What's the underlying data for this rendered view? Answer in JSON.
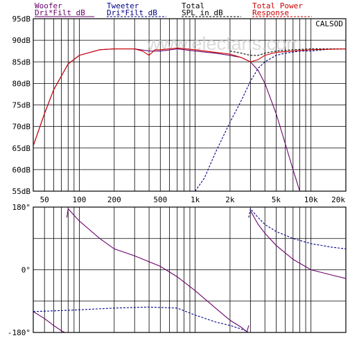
{
  "legend": [
    {
      "line1": "Woofer",
      "line2": "Dri*Filt dB",
      "color": "#6a006a"
    },
    {
      "line1": "Tweeter",
      "line2": "Dri*Filt dB",
      "color": "#000088"
    },
    {
      "line1": "Total",
      "line2": "SPL in dB",
      "color": "#000000"
    },
    {
      "line1": "Total Power",
      "line2": "Response",
      "color": "#cc0000"
    }
  ],
  "brand_label": "CALSOD",
  "watermark": "www.elecfans.com",
  "chart_data": [
    {
      "type": "line",
      "x_scale": "log",
      "xlim": [
        40,
        20000
      ],
      "ylim": [
        55,
        95
      ],
      "y_ticks": [
        "95dB",
        "90dB",
        "85dB",
        "80dB",
        "75dB",
        "70dB",
        "65dB",
        "60dB",
        "55dB"
      ],
      "x_ticks": [
        "50",
        "100",
        "200",
        "500",
        "1k",
        "2k",
        "5k",
        "10k",
        "20k"
      ],
      "series": [
        {
          "name": "Woofer Dri*Filt dB",
          "color": "#6a006a",
          "x": [
            40,
            50,
            60,
            80,
            100,
            150,
            200,
            250,
            300,
            400,
            500,
            700,
            1000,
            1500,
            2000,
            2500,
            3000,
            3500,
            4000,
            5000,
            6000,
            7000,
            8000
          ],
          "y": [
            65.5,
            73,
            78.5,
            84.5,
            86.5,
            87.8,
            88,
            88,
            88,
            87.5,
            87.5,
            88,
            87.5,
            87,
            86.5,
            86,
            85,
            83,
            80,
            73,
            66,
            60,
            55
          ]
        },
        {
          "name": "Tweeter Dri*Filt dB",
          "color": "#000088",
          "x": [
            1000,
            1200,
            1500,
            2000,
            2500,
            3000,
            3500,
            4000,
            5000,
            6000,
            8000,
            10000,
            15000,
            20000
          ],
          "y": [
            55,
            58,
            64,
            71,
            76,
            80.5,
            83.5,
            85,
            86.5,
            87,
            87.5,
            87.5,
            88,
            88
          ]
        },
        {
          "name": "Total SPL in dB",
          "color": "#000000",
          "x": [
            2000,
            2500,
            3000,
            3500,
            4000,
            5000,
            7000,
            10000,
            20000
          ],
          "y": [
            87.5,
            87,
            86.5,
            86.5,
            87,
            87.5,
            87.8,
            88,
            88
          ]
        },
        {
          "name": "Total Power Response",
          "color": "#cc0000",
          "x": [
            40,
            50,
            60,
            80,
            100,
            150,
            200,
            250,
            300,
            350,
            400,
            450,
            500,
            700,
            1000,
            1500,
            2000,
            2500,
            3000,
            3500,
            4000,
            5000,
            7000,
            10000,
            20000
          ],
          "y": [
            65.5,
            73,
            78.5,
            84.5,
            86.5,
            87.8,
            88,
            88,
            88,
            87.5,
            86.5,
            87.8,
            87.8,
            88.2,
            87.8,
            87.2,
            86.8,
            86,
            85,
            85.5,
            86.5,
            87.2,
            87.5,
            87.8,
            88
          ]
        }
      ]
    },
    {
      "type": "line",
      "x_scale": "log",
      "xlim": [
        40,
        20000
      ],
      "ylim": [
        -180,
        180
      ],
      "y_ticks": [
        "180°",
        "0°",
        "-180°"
      ],
      "series": [
        {
          "name": "Woofer phase",
          "color": "#6a006a",
          "x": [
            40,
            50,
            60,
            70,
            75,
            78,
            80,
            100,
            150,
            200,
            300,
            500,
            700,
            1000,
            1500,
            2000,
            2500,
            2800,
            2900,
            3000,
            3500,
            4000,
            5000,
            7000,
            10000,
            15000,
            20000
          ],
          "y": [
            -120,
            -140,
            -160,
            -175,
            -180,
            150,
            175,
            140,
            90,
            60,
            40,
            10,
            -20,
            -60,
            -110,
            -145,
            -165,
            -178,
            -160,
            170,
            130,
            105,
            70,
            30,
            0,
            -15,
            -25
          ]
        },
        {
          "name": "Tweeter phase",
          "color": "#000088",
          "x": [
            40,
            60,
            100,
            200,
            400,
            700,
            1000,
            1500,
            2000,
            2500,
            2850,
            2900,
            3000,
            3500,
            4000,
            5000,
            7000,
            10000,
            15000,
            20000
          ],
          "y": [
            -120,
            -118,
            -115,
            -110,
            -107,
            -110,
            -130,
            -150,
            -160,
            -170,
            -178,
            150,
            175,
            150,
            130,
            110,
            90,
            75,
            65,
            60
          ]
        }
      ]
    }
  ]
}
